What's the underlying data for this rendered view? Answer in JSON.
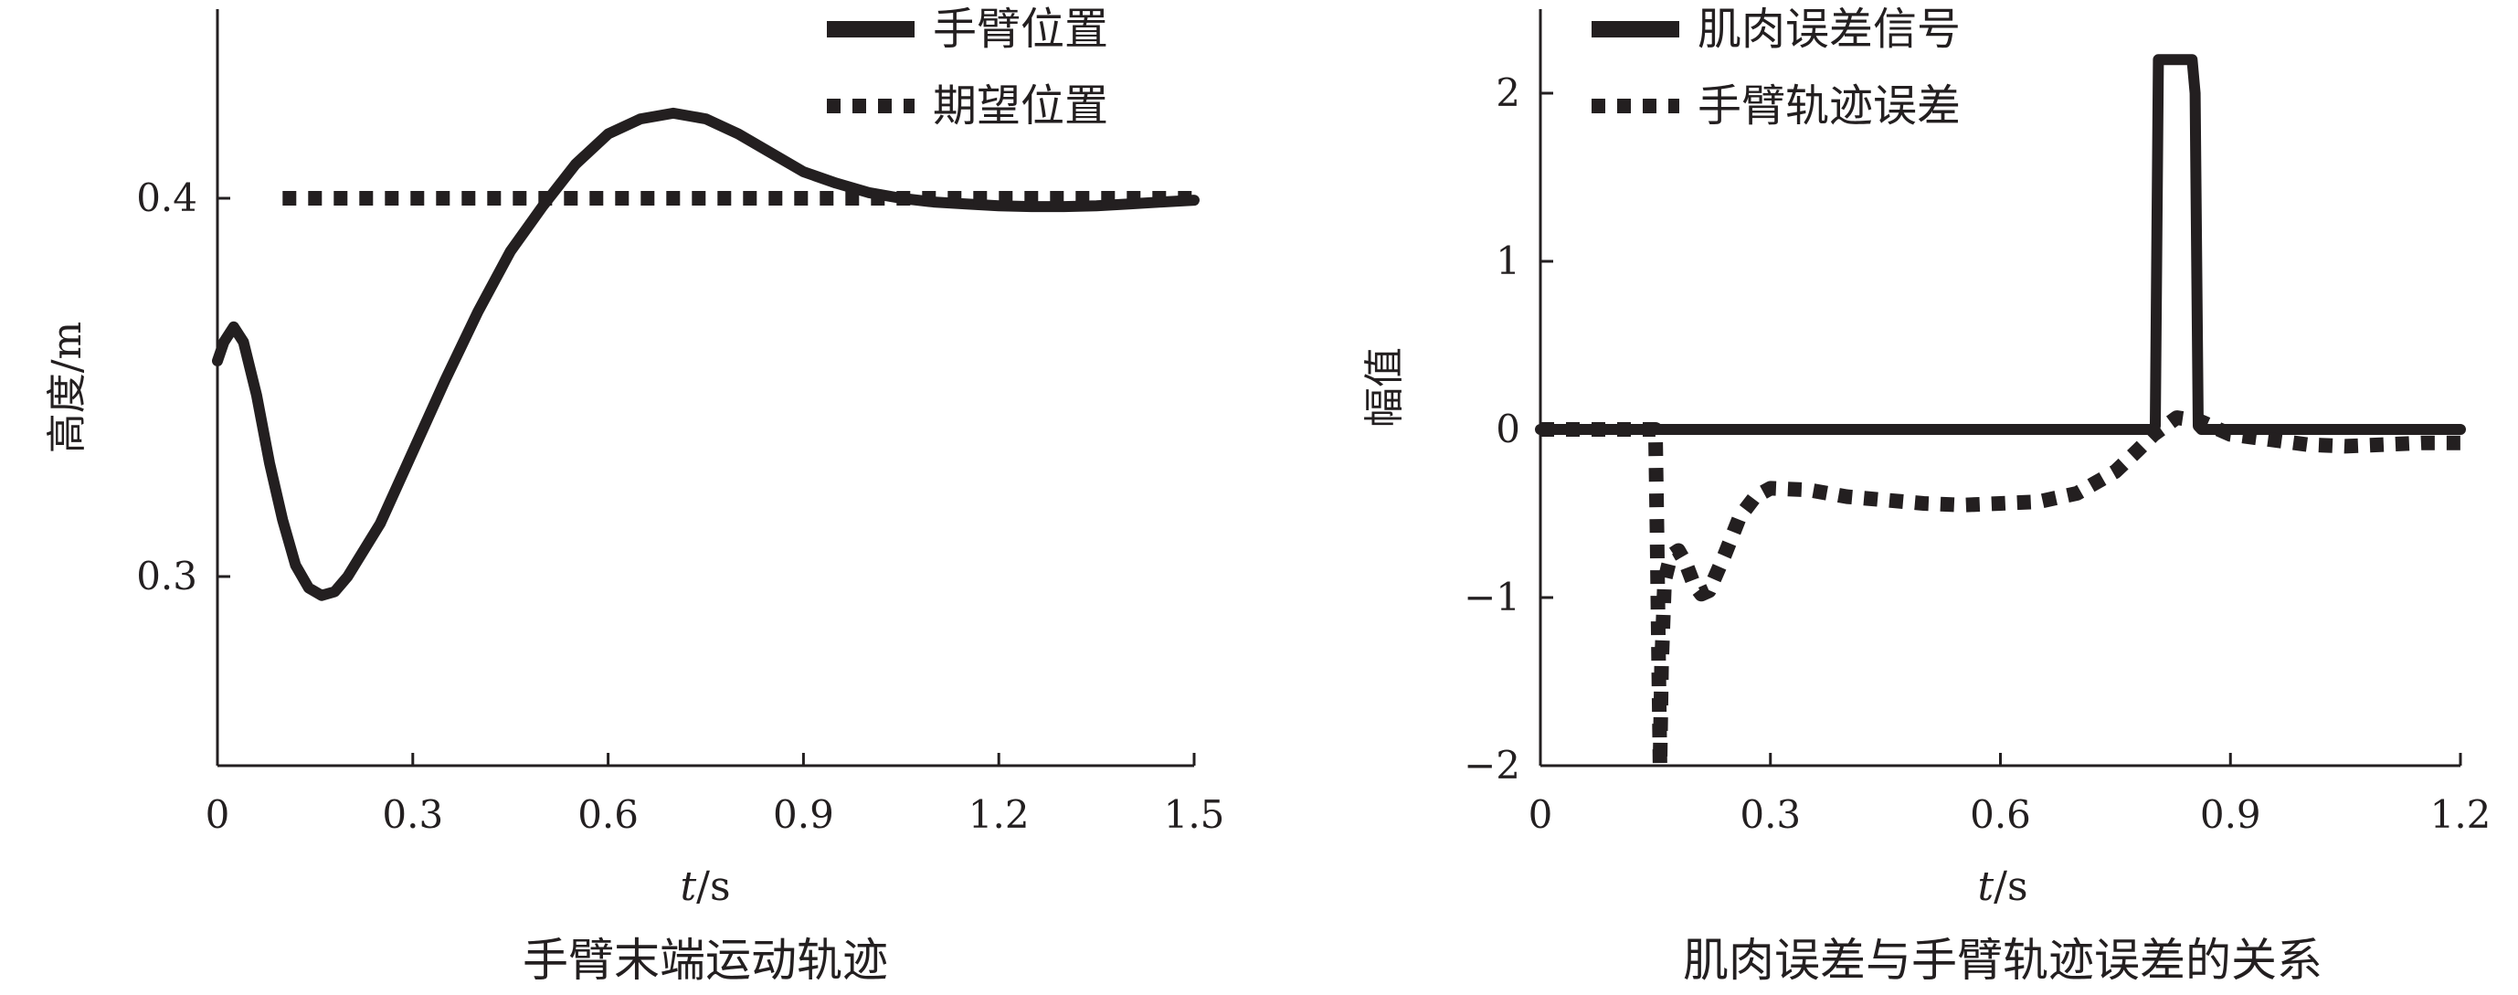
{
  "chart_data": [
    {
      "type": "line",
      "caption": "手臂末端运动轨迹",
      "xlabel_italic": "t",
      "xlabel_unit": "/s",
      "ylabel": "高度/m",
      "xlim": [
        0,
        1.5
      ],
      "ylim": [
        0.25,
        0.45
      ],
      "xticks": [
        0,
        0.3,
        0.6,
        0.9,
        1.2,
        1.5
      ],
      "xtick_labels": [
        "0",
        "0.3",
        "0.6",
        "0.9",
        "1.2",
        "1.5"
      ],
      "yticks": [
        0.3,
        0.4
      ],
      "ytick_labels": [
        "0.3",
        "0.4"
      ],
      "grid": false,
      "legend_position": "top-right",
      "color": "#231f20",
      "series": [
        {
          "name": "手臂位置",
          "style": "solid",
          "points": [
            [
              0,
              0.357
            ],
            [
              0.01,
              0.362
            ],
            [
              0.025,
              0.366
            ],
            [
              0.04,
              0.362
            ],
            [
              0.06,
              0.348
            ],
            [
              0.08,
              0.33
            ],
            [
              0.1,
              0.315
            ],
            [
              0.12,
              0.303
            ],
            [
              0.14,
              0.297
            ],
            [
              0.16,
              0.295
            ],
            [
              0.18,
              0.296
            ],
            [
              0.2,
              0.3
            ],
            [
              0.25,
              0.314
            ],
            [
              0.3,
              0.333
            ],
            [
              0.35,
              0.352
            ],
            [
              0.4,
              0.37
            ],
            [
              0.45,
              0.386
            ],
            [
              0.5,
              0.398
            ],
            [
              0.55,
              0.409
            ],
            [
              0.6,
              0.417
            ],
            [
              0.65,
              0.421
            ],
            [
              0.7,
              0.4225
            ],
            [
              0.75,
              0.421
            ],
            [
              0.8,
              0.417
            ],
            [
              0.85,
              0.412
            ],
            [
              0.9,
              0.407
            ],
            [
              0.95,
              0.404
            ],
            [
              1.0,
              0.4015
            ],
            [
              1.05,
              0.4
            ],
            [
              1.1,
              0.399
            ],
            [
              1.15,
              0.3985
            ],
            [
              1.2,
              0.398
            ],
            [
              1.25,
              0.3978
            ],
            [
              1.3,
              0.3978
            ],
            [
              1.35,
              0.398
            ],
            [
              1.4,
              0.3985
            ],
            [
              1.45,
              0.399
            ],
            [
              1.5,
              0.3995
            ]
          ]
        },
        {
          "name": "期望位置",
          "style": "dotted",
          "points": [
            [
              0.1,
              0.4
            ],
            [
              1.5,
              0.4
            ]
          ]
        }
      ]
    },
    {
      "type": "line",
      "caption": "肌肉误差与手臂轨迹误差的关系",
      "xlabel_italic": "t",
      "xlabel_unit": "/s",
      "ylabel": "幅值",
      "xlim": [
        0,
        1.2
      ],
      "ylim": [
        -2,
        2.5
      ],
      "xticks": [
        0,
        0.3,
        0.6,
        0.9,
        1.2
      ],
      "xtick_labels": [
        "0",
        "0.3",
        "0.6",
        "0.9",
        "1.2"
      ],
      "yticks": [
        -2,
        -1,
        0,
        1,
        2
      ],
      "ytick_labels": [
        "−2",
        "−1",
        "0",
        "1",
        "2"
      ],
      "grid": false,
      "legend_position": "top-left",
      "color": "#231f20",
      "series": [
        {
          "name": "肌肉误差信号",
          "style": "solid",
          "points": [
            [
              0,
              0
            ],
            [
              0.798,
              0
            ],
            [
              0.802,
              0.02
            ],
            [
              0.806,
              2.2
            ],
            [
              0.85,
              2.2
            ],
            [
              0.854,
              2.0
            ],
            [
              0.858,
              0.02
            ],
            [
              0.862,
              0
            ],
            [
              1.2,
              0
            ]
          ]
        },
        {
          "name": "手臂轨迹误差",
          "style": "dotted",
          "points": [
            [
              0,
              0
            ],
            [
              0.15,
              0
            ],
            [
              0.152,
              -0.6
            ],
            [
              0.154,
              -1.3
            ],
            [
              0.156,
              -2.0
            ],
            [
              0.158,
              -1.4
            ],
            [
              0.162,
              -0.9
            ],
            [
              0.17,
              -0.75
            ],
            [
              0.18,
              -0.72
            ],
            [
              0.19,
              -0.8
            ],
            [
              0.2,
              -0.92
            ],
            [
              0.21,
              -0.98
            ],
            [
              0.22,
              -0.96
            ],
            [
              0.24,
              -0.75
            ],
            [
              0.26,
              -0.52
            ],
            [
              0.28,
              -0.4
            ],
            [
              0.3,
              -0.35
            ],
            [
              0.35,
              -0.36
            ],
            [
              0.4,
              -0.4
            ],
            [
              0.45,
              -0.42
            ],
            [
              0.5,
              -0.44
            ],
            [
              0.55,
              -0.45
            ],
            [
              0.6,
              -0.44
            ],
            [
              0.65,
              -0.43
            ],
            [
              0.7,
              -0.38
            ],
            [
              0.75,
              -0.25
            ],
            [
              0.78,
              -0.12
            ],
            [
              0.8,
              -0.03
            ],
            [
              0.83,
              0.07
            ],
            [
              0.86,
              0.05
            ],
            [
              0.88,
              0.01
            ],
            [
              0.9,
              -0.03
            ],
            [
              0.95,
              -0.06
            ],
            [
              1.0,
              -0.09
            ],
            [
              1.05,
              -0.1
            ],
            [
              1.1,
              -0.09
            ],
            [
              1.15,
              -0.08
            ],
            [
              1.2,
              -0.08
            ]
          ]
        }
      ]
    }
  ]
}
